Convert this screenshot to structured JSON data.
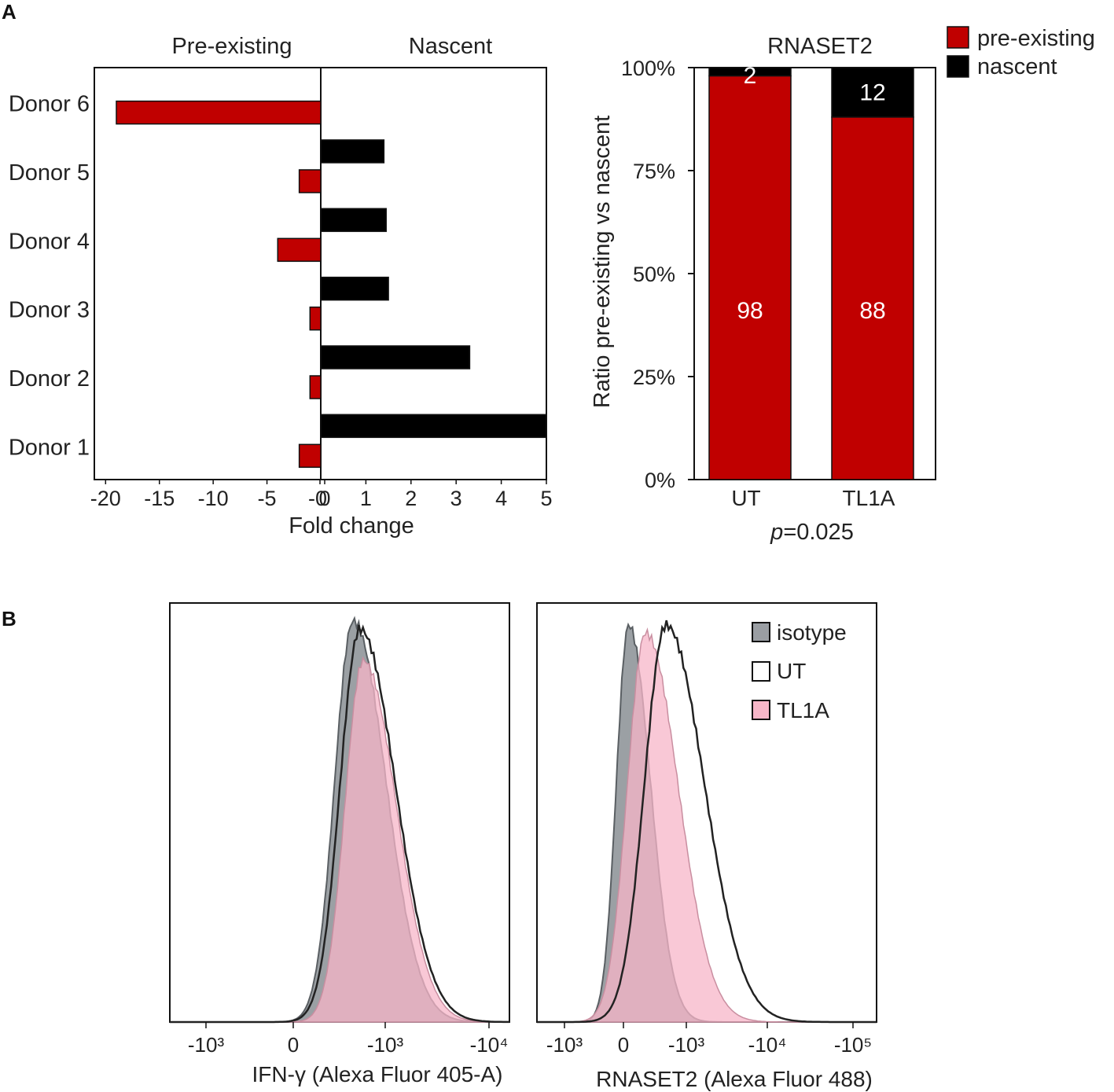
{
  "panel_labels": [
    "A",
    "B"
  ],
  "colors": {
    "pre_existing": "#c00000",
    "nascent": "#000000",
    "isotype": "#8a8f94",
    "tl1a": "#f7b6c8",
    "overlap": "#b06a82"
  },
  "chart_data": [
    {
      "type": "bar",
      "orientation": "horizontal",
      "headers": {
        "left": "Pre-existing",
        "right": "Nascent"
      },
      "categories": [
        "Donor 6",
        "Donor 5",
        "Donor 4",
        "Donor 3",
        "Donor 2",
        "Donor 1"
      ],
      "series": [
        {
          "name": "pre-existing",
          "values": [
            -19,
            -2,
            -4,
            -1,
            -1,
            -2
          ]
        },
        {
          "name": "nascent",
          "values": [
            0,
            1.4,
            1.45,
            1.5,
            3.3,
            5
          ]
        }
      ],
      "xlabel": "Fold change",
      "xticks_negative": [
        "-20",
        "-15",
        "-10",
        "-5",
        "-0"
      ],
      "xticks_negative_values": [
        -20,
        -15,
        -10,
        -5,
        0
      ],
      "xticks_positive": [
        "0",
        "1",
        "2",
        "3",
        "4",
        "5"
      ],
      "xticks_positive_values": [
        0,
        1,
        2,
        3,
        4,
        5
      ],
      "xlim_negative": [
        -21,
        0
      ],
      "xlim_positive": [
        0,
        5
      ]
    },
    {
      "type": "bar",
      "stacked": true,
      "title": "RNASET2",
      "categories": [
        "UT",
        "TL1A"
      ],
      "series": [
        {
          "name": "pre-existing",
          "values": [
            98,
            88
          ]
        },
        {
          "name": "nascent",
          "values": [
            2,
            12
          ]
        }
      ],
      "data_labels": {
        "pre_existing": [
          "98",
          "88"
        ],
        "nascent": [
          "2",
          "12"
        ]
      },
      "ylabel": "Ratio pre-existing vs nascent",
      "yticks": [
        "0%",
        "25%",
        "50%",
        "75%",
        "100%"
      ],
      "ytick_values": [
        0,
        25,
        50,
        75,
        100
      ],
      "ylim": [
        0,
        100
      ],
      "legend": [
        "pre-existing",
        "nascent"
      ],
      "legend_position": "top-right",
      "p_prefix": "p",
      "p_suffix": "=0.025"
    },
    {
      "type": "area",
      "subtype": "histogram-overlay",
      "xlabel": "IFN-γ (Alexa Fluor 405-A)",
      "xticks": [
        "-10³",
        "0",
        "-10³",
        "-10⁴"
      ],
      "series": [
        {
          "name": "isotype",
          "peak_position": 0.54,
          "width": 0.06
        },
        {
          "name": "UT",
          "peak_position": 0.56,
          "width": 0.065
        },
        {
          "name": "TL1A",
          "peak_position": 0.57,
          "width": 0.06
        }
      ]
    },
    {
      "type": "area",
      "subtype": "histogram-overlay",
      "xlabel": "RNASET2 (Alexa Fluor 488)",
      "xticks": [
        "-10³",
        "0",
        "-10³",
        "-10⁴",
        "-10⁵"
      ],
      "legend": [
        "isotype",
        "UT",
        "TL1A"
      ],
      "legend_position": "top-right",
      "series": [
        {
          "name": "isotype",
          "peak_position": 0.27,
          "width": 0.04
        },
        {
          "name": "UT",
          "peak_position": 0.38,
          "width": 0.07
        },
        {
          "name": "TL1A",
          "peak_position": 0.32,
          "width": 0.06
        }
      ]
    }
  ]
}
